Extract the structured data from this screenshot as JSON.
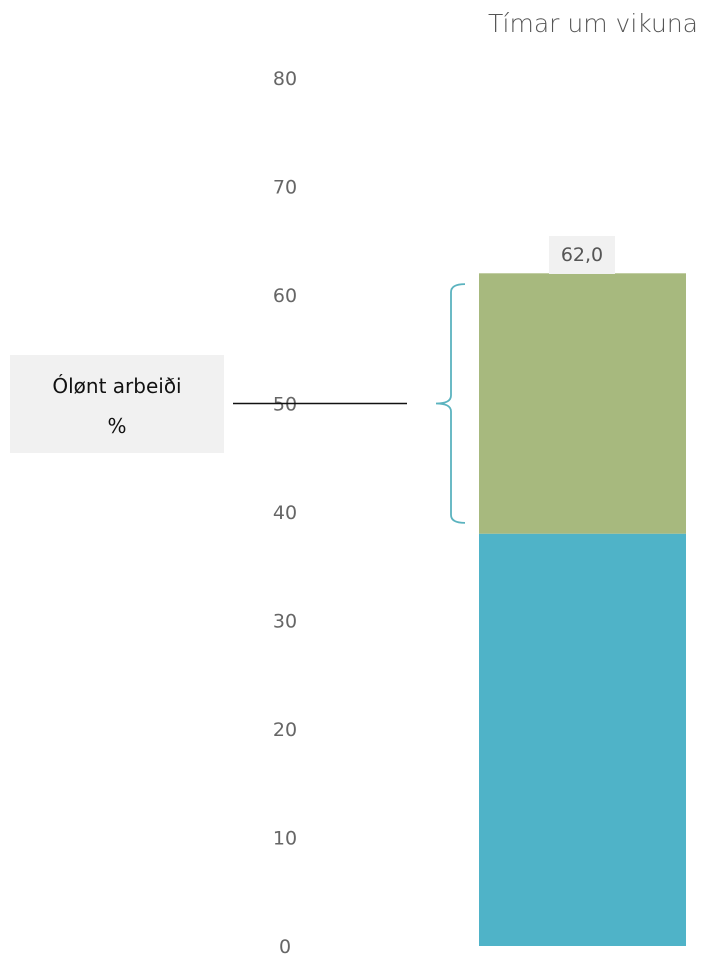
{
  "chart_data": {
    "type": "bar",
    "title": "Tímar um vikuna",
    "stacked": true,
    "categories": [
      ""
    ],
    "ylim": [
      0,
      80
    ],
    "yticks": [
      0,
      10,
      20,
      30,
      40,
      50,
      60,
      70,
      80
    ],
    "grid": false,
    "series": [
      {
        "values": [
          38.0
        ],
        "color": "#4fb3c8"
      },
      {
        "values": [
          24.0
        ],
        "color": "#a7b97e"
      }
    ],
    "total_label": "62,0",
    "annotation": {
      "text_lines": [
        "Ólønt arbeiði",
        "%"
      ],
      "bracket_range": [
        39,
        61
      ],
      "pointer_value": 50,
      "bracket_color": "#5bb3bf"
    }
  }
}
